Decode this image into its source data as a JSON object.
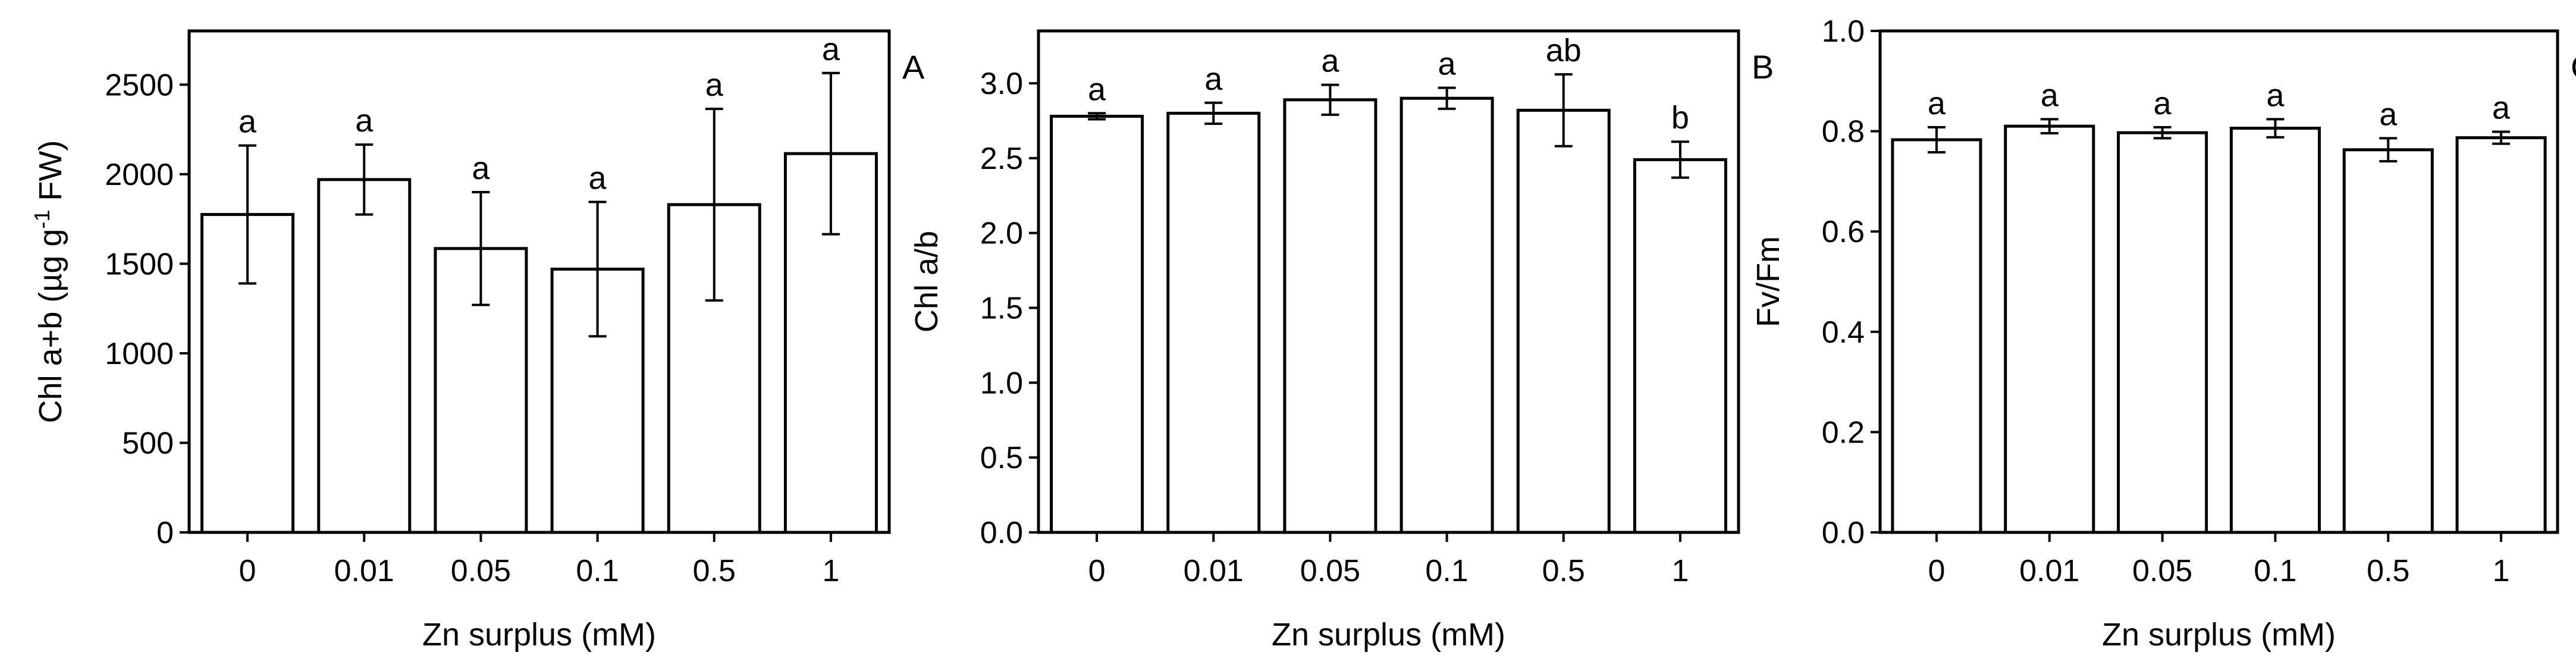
{
  "chart_data": [
    {
      "type": "bar",
      "panel_label": "A",
      "xlabel": "Zn surplus (mM)",
      "ylabel_parts": [
        "Chl a+b (µg g",
        "-1",
        " FW)"
      ],
      "categories": [
        "0",
        "0.01",
        "0.05",
        "0.1",
        "0.5",
        "1"
      ],
      "values": [
        1775,
        1970,
        1585,
        1470,
        1830,
        2115
      ],
      "errors": [
        385,
        195,
        315,
        375,
        535,
        450
      ],
      "significance": [
        "a",
        "a",
        "a",
        "a",
        "a",
        "a"
      ],
      "ylim": [
        0,
        2800
      ],
      "yticks": [
        "0",
        "500",
        "1000",
        "1500",
        "2000",
        "2500"
      ],
      "ytick_values": [
        0,
        500,
        1000,
        1500,
        2000,
        2500
      ]
    },
    {
      "type": "bar",
      "panel_label": "B",
      "xlabel": "Zn surplus (mM)",
      "ylabel_parts": [
        "Chl a/b"
      ],
      "categories": [
        "0",
        "0.01",
        "0.05",
        "0.1",
        "0.5",
        "1"
      ],
      "values": [
        2.78,
        2.8,
        2.89,
        2.9,
        2.82,
        2.49
      ],
      "errors": [
        0.02,
        0.07,
        0.1,
        0.07,
        0.24,
        0.12
      ],
      "significance": [
        "a",
        "a",
        "a",
        "a",
        "ab",
        "b"
      ],
      "ylim": [
        0,
        3.35
      ],
      "yticks": [
        "0.0",
        "0.5",
        "1.0",
        "1.5",
        "2.0",
        "2.5",
        "3.0"
      ],
      "ytick_values": [
        0,
        0.5,
        1.0,
        1.5,
        2.0,
        2.5,
        3.0
      ]
    },
    {
      "type": "bar",
      "panel_label": "C",
      "xlabel": "Zn surplus (mM)",
      "ylabel_parts": [
        "Fv/Fm"
      ],
      "categories": [
        "0",
        "0.01",
        "0.05",
        "0.1",
        "0.5",
        "1"
      ],
      "values": [
        0.783,
        0.81,
        0.797,
        0.806,
        0.763,
        0.787
      ],
      "errors": [
        0.025,
        0.014,
        0.011,
        0.018,
        0.023,
        0.012
      ],
      "significance": [
        "a",
        "a",
        "a",
        "a",
        "a",
        "a"
      ],
      "ylim": [
        0,
        1.0
      ],
      "yticks": [
        "0.0",
        "0.2",
        "0.4",
        "0.6",
        "0.8",
        "1.0"
      ],
      "ytick_values": [
        0,
        0.2,
        0.4,
        0.6,
        0.8,
        1.0
      ]
    }
  ]
}
